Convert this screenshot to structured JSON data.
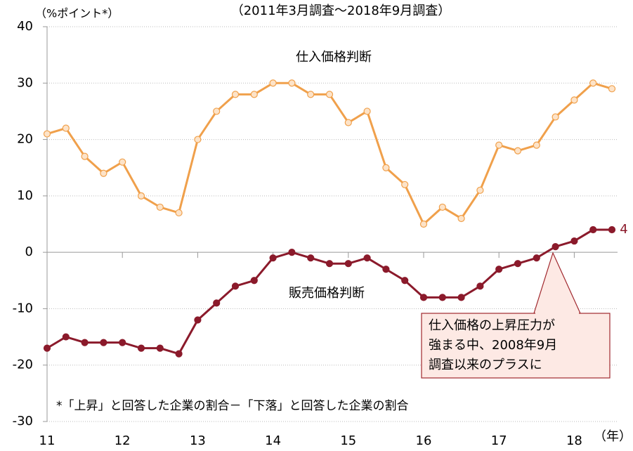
{
  "chart_data": {
    "type": "line",
    "title": "（2011年3月調査～2018年9月調査）",
    "y_axis_label": "（%ポイント*）",
    "x_axis_label": "（年）",
    "footnote": "*「上昇」と回答した企業の割合－「下落」と回答した企業の割合",
    "callout": [
      "仕入価格の上昇圧力が",
      "強まる中、2008年9月",
      "調査以来のプラスに"
    ],
    "last_label": "4",
    "xlim": [
      11,
      18.5
    ],
    "xticks": [
      11,
      12,
      13,
      14,
      15,
      16,
      17,
      18
    ],
    "ylim": [
      -30,
      40
    ],
    "yticks": [
      -30,
      -20,
      -10,
      0,
      10,
      20,
      30,
      40
    ],
    "grid": true,
    "series": [
      {
        "name": "仕入価格判断",
        "color": "#f0a04b",
        "values": [
          21,
          22,
          17,
          14,
          16,
          10,
          8,
          7,
          20,
          25,
          28,
          28,
          30,
          30,
          28,
          28,
          23,
          25,
          15,
          12,
          5,
          8,
          6,
          11,
          19,
          18,
          19,
          24,
          27,
          30,
          29
        ]
      },
      {
        "name": "販売価格判断",
        "color": "#8b1a2b",
        "values": [
          -17,
          -15,
          -16,
          -16,
          -16,
          -17,
          -17,
          -18,
          -12,
          -9,
          -6,
          -5,
          -1,
          0,
          -1,
          -2,
          -2,
          -1,
          -3,
          -5,
          -8,
          -8,
          -8,
          -6,
          -3,
          -2,
          -1,
          1,
          2,
          4,
          4
        ]
      }
    ]
  }
}
